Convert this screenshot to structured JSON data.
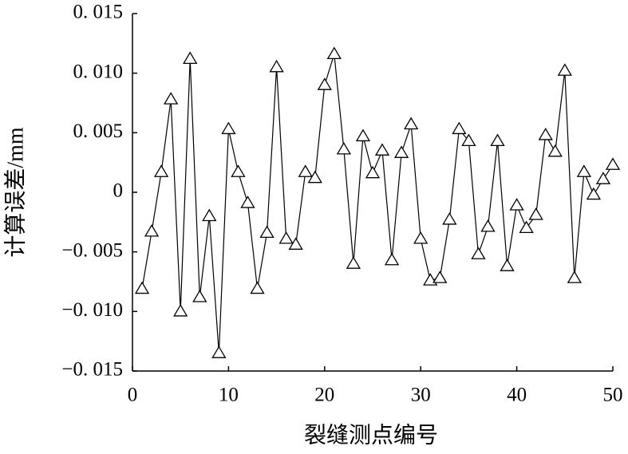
{
  "chart_data": {
    "type": "line",
    "xlabel": "裂缝测点编号",
    "ylabel": "计算误差/mm",
    "x": [
      1,
      2,
      3,
      4,
      5,
      6,
      7,
      8,
      9,
      10,
      11,
      12,
      13,
      14,
      15,
      16,
      17,
      18,
      19,
      20,
      21,
      22,
      23,
      24,
      25,
      26,
      27,
      28,
      29,
      30,
      31,
      32,
      33,
      34,
      35,
      36,
      37,
      38,
      39,
      40,
      41,
      42,
      43,
      44,
      45,
      46,
      47,
      48,
      49,
      50
    ],
    "values": [
      -0.0081,
      -0.0033,
      0.0017,
      0.0078,
      -0.01,
      0.0112,
      -0.0088,
      -0.002,
      -0.0135,
      0.0053,
      0.0017,
      -0.0009,
      -0.0081,
      -0.0034,
      0.0105,
      -0.0039,
      -0.0044,
      0.0017,
      0.0012,
      0.009,
      0.0116,
      0.0036,
      -0.006,
      0.0047,
      0.0016,
      0.0035,
      -0.0057,
      0.0033,
      0.0057,
      -0.0039,
      -0.0074,
      -0.0072,
      -0.0023,
      0.0053,
      0.0043,
      -0.0052,
      -0.0029,
      0.0043,
      -0.0062,
      -0.0011,
      -0.003,
      -0.0019,
      0.0048,
      0.0034,
      0.0102,
      -0.0072,
      0.0017,
      -0.0002,
      0.0011,
      0.0023
    ],
    "color": "#000000",
    "marker": "triangle",
    "xlim": [
      0,
      50
    ],
    "xticks": [
      0,
      10,
      20,
      30,
      40,
      50
    ],
    "ylim": [
      -0.015,
      0.015
    ],
    "yticks": [
      {
        "value": -0.015,
        "label": "−0. 015"
      },
      {
        "value": -0.01,
        "label": "−0. 010"
      },
      {
        "value": -0.005,
        "label": "−0. 005"
      },
      0,
      {
        "value": 0.005,
        "label": "0. 005"
      },
      {
        "value": 0.01,
        "label": "0. 010"
      },
      {
        "value": 0.015,
        "label": "0. 015"
      }
    ],
    "grid": false
  }
}
